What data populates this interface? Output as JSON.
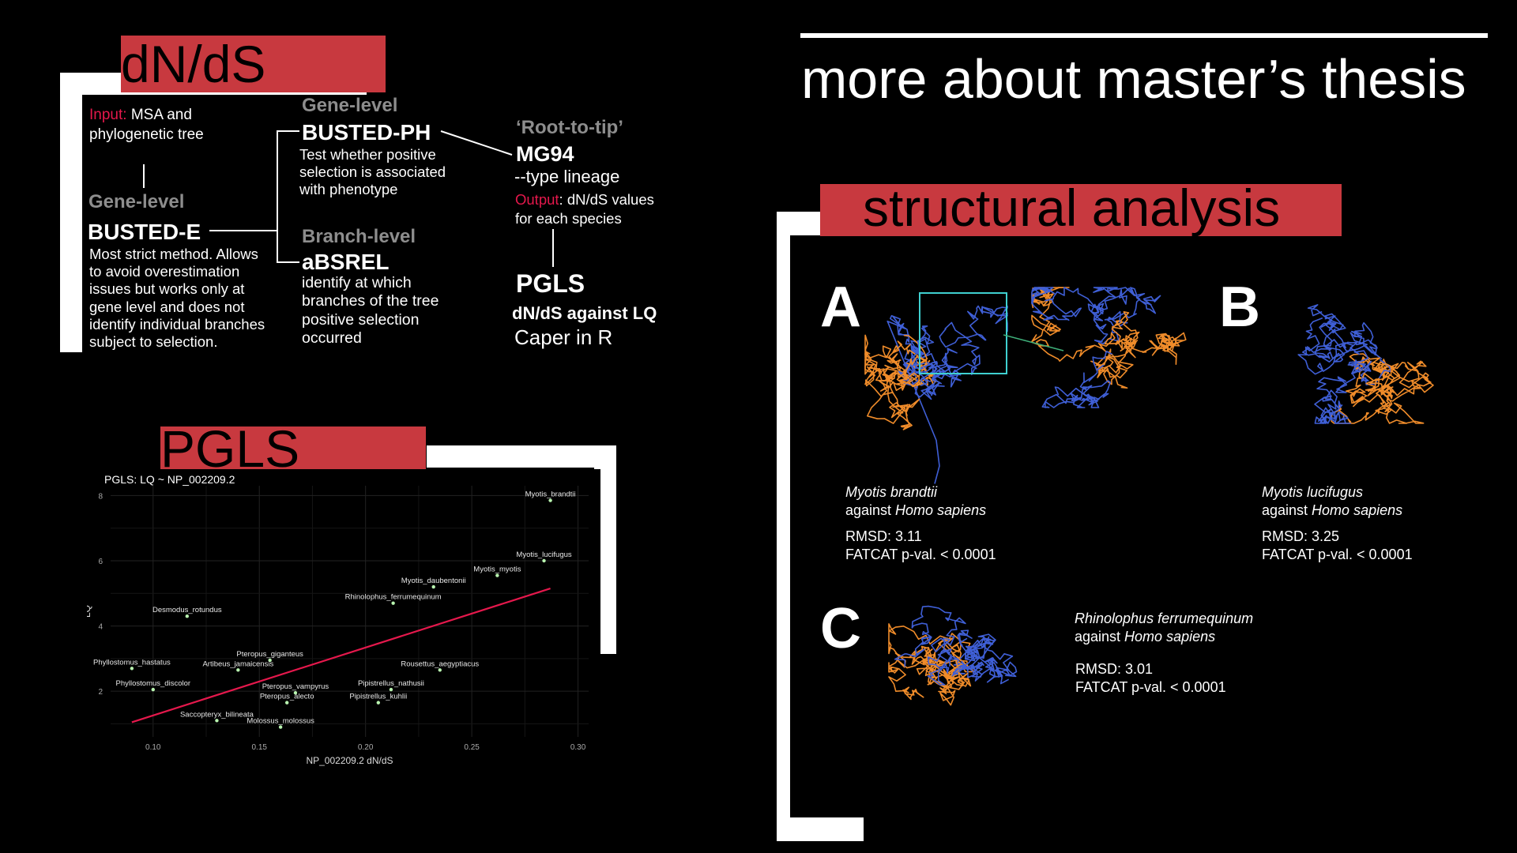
{
  "slide_title": "more about master’s thesis",
  "dnds": {
    "heading": "dN/dS",
    "input_label": "Input:",
    "input_text": " MSA and",
    "input_text2": "phylogenetic tree",
    "gene_level_1": "Gene-level",
    "busted_e": "BUSTED-E",
    "busted_e_desc": "Most strict method. Allows\nto avoid overestimation\nissues but works only at\ngene level and does not\nidentify individual branches\nsubject to selection.",
    "gene_level_2": "Gene-level",
    "busted_ph": "BUSTED-PH",
    "busted_ph_desc": "Test whether positive\nselection is associated\nwith phenotype",
    "branch_level": "Branch-level",
    "absrel": "aBSREL",
    "absrel_desc": "identify at which\nbranches of the tree\npositive selection\noccurred",
    "root_to_tip": "‘Root-to-tip’",
    "mg94": "MG94",
    "mg94_desc": "--type lineage",
    "output_label": "Output",
    "output_text": ": dN/dS values",
    "output_text2": "for each species",
    "pgls": "PGLS",
    "pgls_desc1": "dN/dS against LQ",
    "pgls_desc2": "Caper in R"
  },
  "pgls_section": {
    "heading": "PGLS",
    "plot_title": "PGLS: LQ ~ NP_002209.2"
  },
  "chart_data": {
    "type": "scatter",
    "title": "PGLS: LQ ~ NP_002209.2",
    "xlabel": "NP_002209.2 dN/dS",
    "ylabel": "LQ",
    "xlim": [
      0.08,
      0.305
    ],
    "ylim": [
      0.6,
      8.3
    ],
    "xticks": [
      "0.10",
      "0.15",
      "0.20",
      "0.25",
      "0.30"
    ],
    "yticks": [
      "2",
      "4",
      "6",
      "8"
    ],
    "grid": true,
    "fit_line": {
      "x": [
        0.09,
        0.287
      ],
      "y": [
        1.05,
        5.15
      ],
      "color": "#e5184c"
    },
    "points": [
      {
        "label": "Myotis_brandtii",
        "x": 0.287,
        "y": 7.85
      },
      {
        "label": "Myotis_lucifugus",
        "x": 0.284,
        "y": 6.0
      },
      {
        "label": "Myotis_myotis",
        "x": 0.262,
        "y": 5.55
      },
      {
        "label": "Myotis_daubentonii",
        "x": 0.232,
        "y": 5.2
      },
      {
        "label": "Rhinolophus_ferrumequinum",
        "x": 0.213,
        "y": 4.7
      },
      {
        "label": "Desmodus_rotundus",
        "x": 0.116,
        "y": 4.3
      },
      {
        "label": "Pteropus_giganteus",
        "x": 0.155,
        "y": 2.95
      },
      {
        "label": "Phyllostomus_hastatus",
        "x": 0.09,
        "y": 2.7
      },
      {
        "label": "Artibeus_jamaicensis",
        "x": 0.14,
        "y": 2.65
      },
      {
        "label": "Rousettus_aegyptiacus",
        "x": 0.235,
        "y": 2.65
      },
      {
        "label": "Phyllostomus_discolor",
        "x": 0.1,
        "y": 2.05
      },
      {
        "label": "Pipistrellus_nathusii",
        "x": 0.212,
        "y": 2.05
      },
      {
        "label": "Pteropus_vampyrus",
        "x": 0.167,
        "y": 1.95
      },
      {
        "label": "Pteropus_alecto",
        "x": 0.163,
        "y": 1.65
      },
      {
        "label": "Pipistrellus_kuhlii",
        "x": 0.206,
        "y": 1.65
      },
      {
        "label": "Saccopteryx_bilineata",
        "x": 0.13,
        "y": 1.1
      },
      {
        "label": "Molossus_molossus",
        "x": 0.16,
        "y": 0.9
      }
    ]
  },
  "structural": {
    "heading": "structural analysis",
    "panel_a": {
      "letter": "A",
      "species": "Myotis brandtii",
      "against": "against ",
      "ref": "Homo sapiens",
      "rmsd": "RMSD: 3.11",
      "fatcat": "FATCAT p-val. < 0.0001"
    },
    "panel_b": {
      "letter": "B",
      "species": "Myotis lucifugus",
      "against": "against ",
      "ref": "Homo sapiens",
      "rmsd": "RMSD: 3.25",
      "fatcat": "FATCAT p-val. < 0.0001"
    },
    "panel_c": {
      "letter": "C",
      "species": "Rhinolophus ferrumequinum",
      "against": "against ",
      "ref": "Homo sapiens",
      "rmsd": "RMSD: 3.01",
      "fatcat": "FATCAT p-val. < 0.0001"
    },
    "colors": {
      "orange": "#f08c2a",
      "blue": "#3f5fd6",
      "highlight": "#3fd0d0"
    }
  }
}
